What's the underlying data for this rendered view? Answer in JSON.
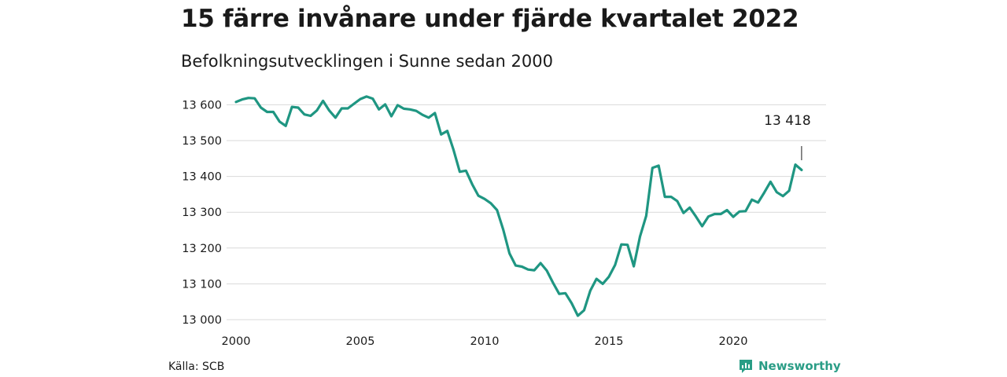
{
  "header": {
    "title": "15 färre invånare under fjärde kvartalet 2022",
    "subtitle": "Befolkningsutvecklingen i Sunne sedan 2000"
  },
  "footer": {
    "source": "Källa: SCB",
    "brand": "Newsworthy",
    "brand_icon": "chart-bubble-icon"
  },
  "colors": {
    "line": "#1f9682",
    "grid": "#d9d9d9",
    "brand": "#2a9d86"
  },
  "chart_data": {
    "type": "line",
    "title": "15 färre invånare under fjärde kvartalet 2022",
    "subtitle": "Befolkningsutvecklingen i Sunne sedan 2000",
    "xlabel": "",
    "ylabel": "",
    "grid": true,
    "xlim": [
      2000,
      2023.6
    ],
    "ylim": [
      12990,
      13630
    ],
    "x_ticks": [
      2000,
      2005,
      2010,
      2015,
      2020
    ],
    "x_tick_labels": [
      "2000",
      "2005",
      "2010",
      "2015",
      "2020"
    ],
    "y_ticks": [
      13000,
      13100,
      13200,
      13300,
      13400,
      13500,
      13600
    ],
    "y_tick_labels": [
      "13 000",
      "13 100",
      "13 200",
      "13 300",
      "13 400",
      "13 500",
      "13 600"
    ],
    "annotation": {
      "label": "13 418",
      "x": 2022.75,
      "y": 13418
    },
    "series": [
      {
        "x": [
          2000,
          2000.25,
          2000.5,
          2000.75,
          2001,
          2001.25,
          2001.5,
          2001.75,
          2002,
          2002.25,
          2002.5,
          2002.75,
          2003,
          2003.25,
          2003.5,
          2003.75,
          2004,
          2004.25,
          2004.5,
          2004.75,
          2005,
          2005.25,
          2005.5,
          2005.75,
          2006,
          2006.25,
          2006.5,
          2006.75,
          2007,
          2007.25,
          2007.5,
          2007.75,
          2008,
          2008.25,
          2008.5,
          2008.75,
          2009,
          2009.25,
          2009.5,
          2009.75,
          2010,
          2010.25,
          2010.5,
          2010.75,
          2011,
          2011.25,
          2011.5,
          2011.75,
          2012,
          2012.25,
          2012.5,
          2012.75,
          2013,
          2013.25,
          2013.5,
          2013.75,
          2014,
          2014.25,
          2014.5,
          2014.75,
          2015,
          2015.25,
          2015.5,
          2015.75,
          2016,
          2016.25,
          2016.5,
          2016.75,
          2017,
          2017.25,
          2017.5,
          2017.75,
          2018,
          2018.25,
          2018.5,
          2018.75,
          2019,
          2019.25,
          2019.5,
          2019.75,
          2020,
          2020.25,
          2020.5,
          2020.75,
          2021,
          2021.25,
          2021.5,
          2021.75,
          2022,
          2022.25,
          2022.5,
          2022.75
        ],
        "values": [
          13608,
          13615,
          13619,
          13618,
          13592,
          13580,
          13580,
          13553,
          13541,
          13594,
          13592,
          13573,
          13569,
          13584,
          13611,
          13584,
          13564,
          13590,
          13590,
          13603,
          13616,
          13623,
          13617,
          13587,
          13601,
          13568,
          13599,
          13589,
          13587,
          13583,
          13572,
          13564,
          13577,
          13517,
          13527,
          13474,
          13413,
          13416,
          13378,
          13346,
          13337,
          13325,
          13306,
          13251,
          13185,
          13151,
          13148,
          13140,
          13138,
          13158,
          13137,
          13103,
          13072,
          13074,
          13046,
          13011,
          13026,
          13081,
          13114,
          13100,
          13120,
          13153,
          13210,
          13209,
          13149,
          13232,
          13290,
          13424,
          13430,
          13343,
          13343,
          13331,
          13298,
          13313,
          13288,
          13261,
          13288,
          13295,
          13295,
          13306,
          13287,
          13302,
          13303,
          13335,
          13327,
          13355,
          13385,
          13356,
          13345,
          13360,
          13433,
          13418
        ]
      }
    ]
  }
}
